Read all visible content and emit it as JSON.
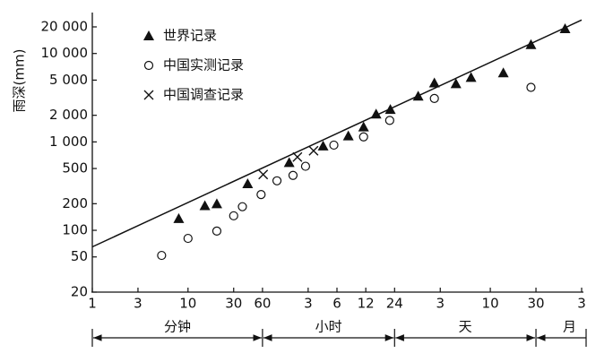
{
  "chart_data": {
    "type": "scatter",
    "y_label": "雨深(mm)",
    "log_x": true,
    "log_y": true,
    "xlim": [
      1,
      129600
    ],
    "xticks": [
      1,
      3,
      10,
      30,
      60,
      {
        "value": 180,
        "label": "3"
      },
      {
        "value": 360,
        "label": "6"
      },
      {
        "value": 720,
        "label": "12"
      },
      {
        "value": 1440,
        "label": "24"
      },
      {
        "value": 4320,
        "label": "3"
      },
      {
        "value": 14400,
        "label": "10"
      },
      {
        "value": 43200,
        "label": "30"
      },
      {
        "value": 129600,
        "label": "3"
      }
    ],
    "ylim": [
      20,
      20000
    ],
    "yticks": [
      20,
      50,
      100,
      200,
      500,
      {
        "value": 1000,
        "label": "1 000"
      },
      {
        "value": 2000,
        "label": "2 000"
      },
      {
        "value": 5000,
        "label": "5 000"
      },
      {
        "value": 10000,
        "label": "10 000"
      },
      {
        "value": 20000,
        "label": "20 000"
      }
    ],
    "legend": "upper-left",
    "series": [
      {
        "name": "世界记录",
        "marker": "triangle",
        "color": "#111111",
        "x": [
          8,
          15,
          20,
          42,
          114,
          258,
          473,
          683,
          923,
          1300,
          2540,
          3750,
          6300,
          9060,
          19700,
          38300,
          87000
        ],
        "values": [
          136,
          190,
          200,
          337,
          585,
          900,
          1170,
          1480,
          2070,
          2330,
          3300,
          4650,
          4560,
          5370,
          6050,
          12600,
          19100
        ]
      },
      {
        "name": "中国实测记录",
        "marker": "circle",
        "color": "#111111",
        "x": [
          5.3,
          10,
          20,
          30,
          37,
          58,
          85,
          125,
          169,
          334,
          683,
          1280,
          3750,
          38300
        ],
        "values": [
          52,
          81,
          98,
          146,
          185,
          254,
          363,
          418,
          530,
          920,
          1140,
          1750,
          3100,
          4140
        ]
      },
      {
        "name": "中国调查记录",
        "marker": "cross",
        "color": "#111111",
        "x": [
          61,
          139,
          205
        ],
        "values": [
          428,
          675,
          795
        ]
      }
    ],
    "reference_line": {
      "x": [
        1,
        129600
      ],
      "values": [
        65,
        23900
      ],
      "color": "#111111"
    },
    "groups": [
      {
        "label": "分钟",
        "from": 1,
        "to": 60
      },
      {
        "label": "小时",
        "from": 60,
        "to": 1440
      },
      {
        "label": "天",
        "from": 1440,
        "to": 43200
      },
      {
        "label": "月",
        "from": 43200,
        "to": 129600
      }
    ]
  }
}
